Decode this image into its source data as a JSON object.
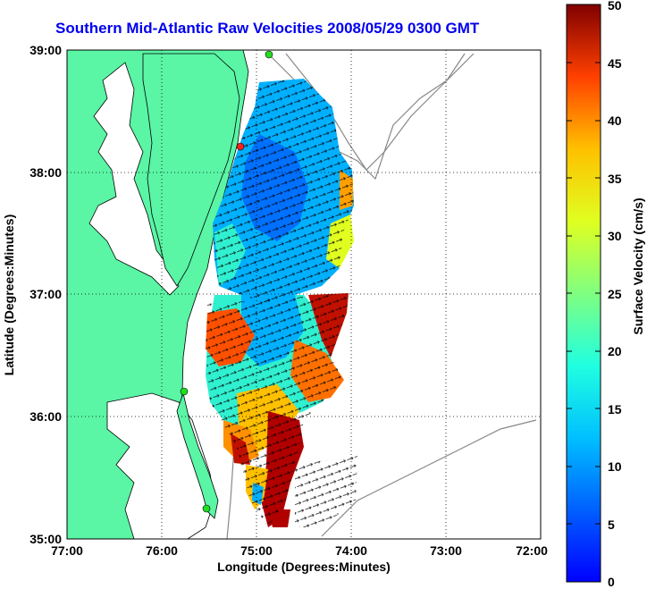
{
  "title": "Southern Mid-Atlantic Raw Velocities 2008/05/29 0300 GMT",
  "x_axis": {
    "label": "Longitude (Degrees:Minutes)",
    "ticks": [
      "77:00",
      "76:00",
      "75:00",
      "74:00",
      "73:00",
      "72:00"
    ]
  },
  "y_axis": {
    "label": "Latitude (Degrees:Minutes)",
    "ticks": [
      "39:00",
      "38:00",
      "37:00",
      "36:00",
      "35:00"
    ]
  },
  "colorbar": {
    "label": "Surface Velocity (cm/s)",
    "ticks": [
      "50",
      "45",
      "40",
      "35",
      "30",
      "25",
      "20",
      "15",
      "10",
      "5",
      "0"
    ],
    "min": 0,
    "max": 50,
    "colormap": "jet"
  },
  "colors": {
    "land": "#5af5a5",
    "title": "#0000ee",
    "coast_line": "#000000",
    "bathymetry": "#888888",
    "station_marker": "#22dd22",
    "station_marker_active": "#ff2020"
  },
  "map": {
    "lon_range": [
      -77,
      -72
    ],
    "lat_range": [
      35,
      39
    ],
    "grid": true,
    "stations": [
      {
        "lon": -74.87,
        "lat": 39.0,
        "status": "active"
      },
      {
        "lon": -75.15,
        "lat": 38.2,
        "status": "alert"
      },
      {
        "lon": -75.7,
        "lat": 36.2,
        "status": "active"
      },
      {
        "lon": -75.5,
        "lat": 35.3,
        "status": "active"
      }
    ]
  }
}
